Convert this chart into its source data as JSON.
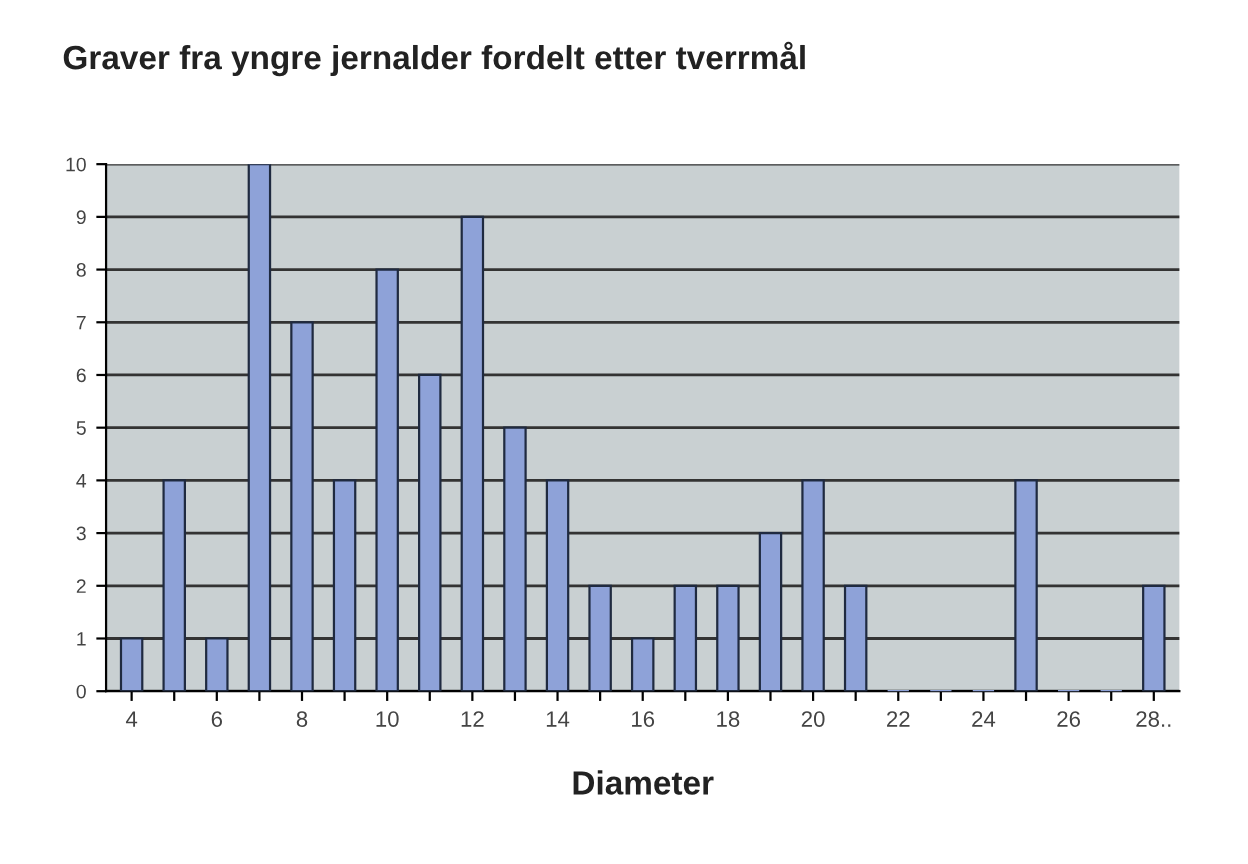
{
  "chart_data": {
    "type": "bar",
    "title": "Graver fra yngre jernalder fordelt etter tverrmål",
    "xlabel": "Diameter",
    "categories": [
      "4",
      null,
      "6",
      null,
      "8",
      null,
      "10",
      null,
      "12",
      null,
      "14",
      null,
      "16",
      null,
      "18",
      null,
      "20",
      null,
      "22",
      null,
      "24",
      null,
      "26",
      null,
      "28.."
    ],
    "values": [
      1,
      4,
      1,
      10,
      7,
      4,
      8,
      6,
      9,
      5,
      4,
      2,
      1,
      2,
      2,
      3,
      4,
      2,
      0,
      0,
      0,
      4,
      0,
      0,
      2
    ],
    "color": "#8ea2d8",
    "ylim": [
      0,
      10
    ],
    "yticks": [
      0,
      1,
      2,
      3,
      4,
      5,
      6,
      7,
      8,
      9,
      10
    ],
    "grid": "y",
    "legend": false
  }
}
